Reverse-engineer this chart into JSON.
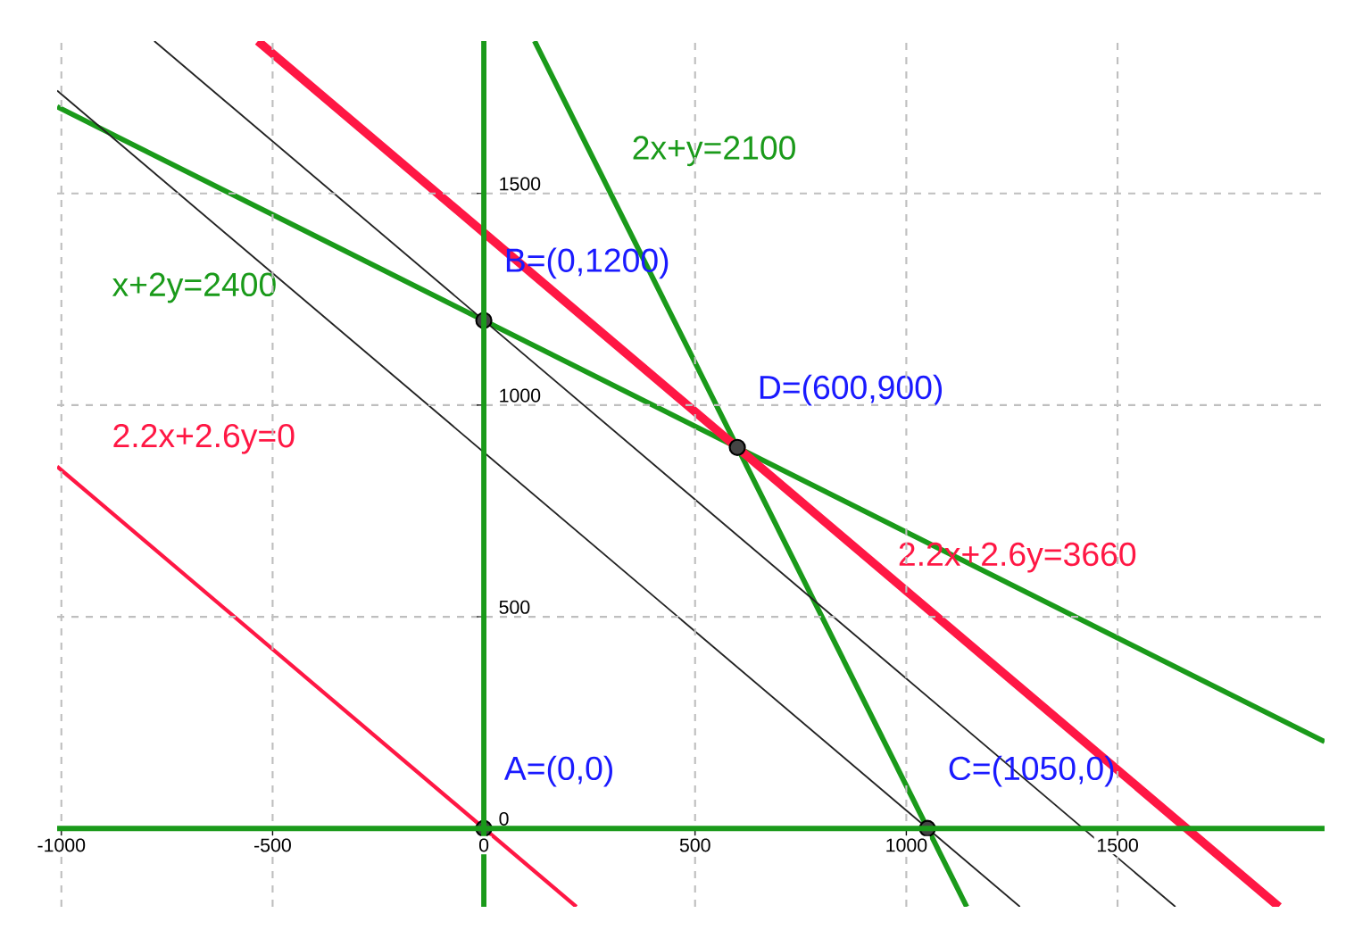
{
  "chart_data": {
    "type": "line",
    "xlim": [
      -1010,
      1990
    ],
    "ylim": [
      -185,
      1860
    ],
    "xticks": [
      -1000,
      -500,
      0,
      500,
      1000,
      1500
    ],
    "yticks": [
      0,
      500,
      1000,
      1500
    ],
    "grid": true,
    "series": [
      {
        "name": "x+2y=2400",
        "color": "#1a9a1a",
        "x": [
          -1010,
          1990
        ],
        "values": [
          1705,
          205
        ]
      },
      {
        "name": "2x+y=2100",
        "color": "#1a9a1a",
        "x": [
          120,
          1143
        ],
        "values": [
          1860,
          -185
        ]
      },
      {
        "name": "2.2x+2.6y=3660",
        "color": "#ff1744",
        "x": [
          -535,
          1882
        ],
        "values": [
          1860,
          -185
        ]
      },
      {
        "name": "2.2x+2.6y=0",
        "color": "#ff1744",
        "x": [
          -1010,
          219
        ],
        "values": [
          855,
          -185
        ]
      },
      {
        "color": "#222222",
        "x": [
          -780,
          1637
        ],
        "values": [
          1860,
          -185
        ]
      },
      {
        "color": "#222222",
        "x": [
          -1010,
          1269
        ],
        "values": [
          1743,
          -185
        ]
      },
      {
        "type": "scatter",
        "marker": "circle",
        "color": "#444444",
        "x": [
          0,
          0,
          1050,
          600
        ],
        "values": [
          0,
          1200,
          0,
          900
        ]
      }
    ],
    "annotations": [
      {
        "text": "A=(0,0)",
        "x": 0,
        "y": 0
      },
      {
        "text": "B=(0,1200)",
        "x": 0,
        "y": 1200
      },
      {
        "text": "C=(1050,0)",
        "x": 1050,
        "y": 0
      },
      {
        "text": "D=(600,900)",
        "x": 600,
        "y": 900
      }
    ]
  }
}
